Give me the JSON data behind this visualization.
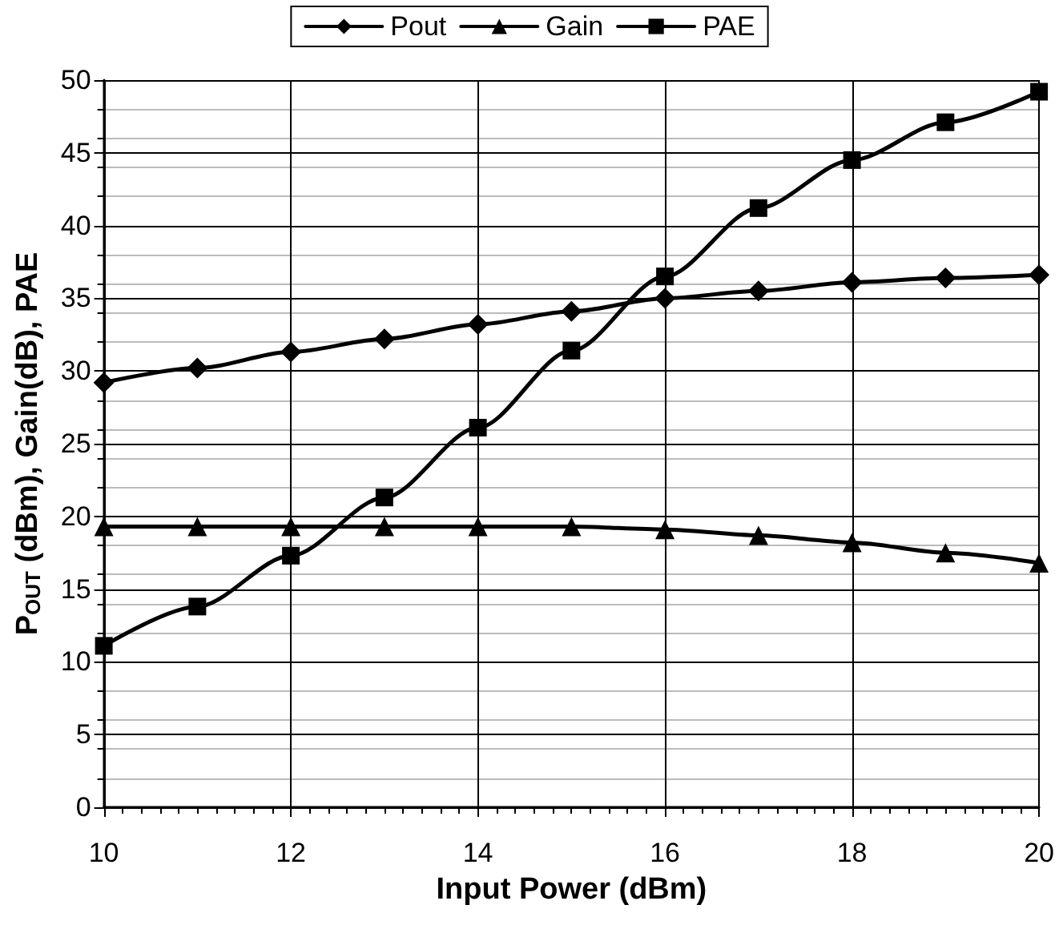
{
  "chart_data": {
    "type": "line",
    "xlabel": "Input Power (dBm)",
    "ylabel": "P$_{OUT}$ (dBm), Gain(dB), PAE",
    "x": [
      10,
      11,
      12,
      13,
      14,
      15,
      16,
      17,
      18,
      19,
      20
    ],
    "series": [
      {
        "name": "Pout",
        "color": "#000000",
        "marker": "diamond",
        "values": [
          29.2,
          30.2,
          31.3,
          32.2,
          33.2,
          34.1,
          35.0,
          35.5,
          36.1,
          36.4,
          36.6
        ]
      },
      {
        "name": "Gain",
        "color": "#000000",
        "marker": "triangle",
        "values": [
          19.3,
          19.3,
          19.3,
          19.3,
          19.3,
          19.3,
          19.1,
          18.7,
          18.2,
          17.5,
          16.8
        ]
      },
      {
        "name": "PAE",
        "color": "#000000",
        "marker": "square",
        "values": [
          11.1,
          13.8,
          17.3,
          21.3,
          26.1,
          31.4,
          36.5,
          41.2,
          44.5,
          47.1,
          49.2
        ]
      }
    ],
    "xlim": [
      10,
      20
    ],
    "xticks": [
      10,
      12,
      14,
      16,
      18,
      20
    ],
    "ylim": [
      0,
      50
    ],
    "yticks": [
      0,
      5,
      10,
      15,
      20,
      25,
      30,
      35,
      40,
      45,
      50
    ],
    "grid": true,
    "legend": "top",
    "line_style": "solid"
  }
}
